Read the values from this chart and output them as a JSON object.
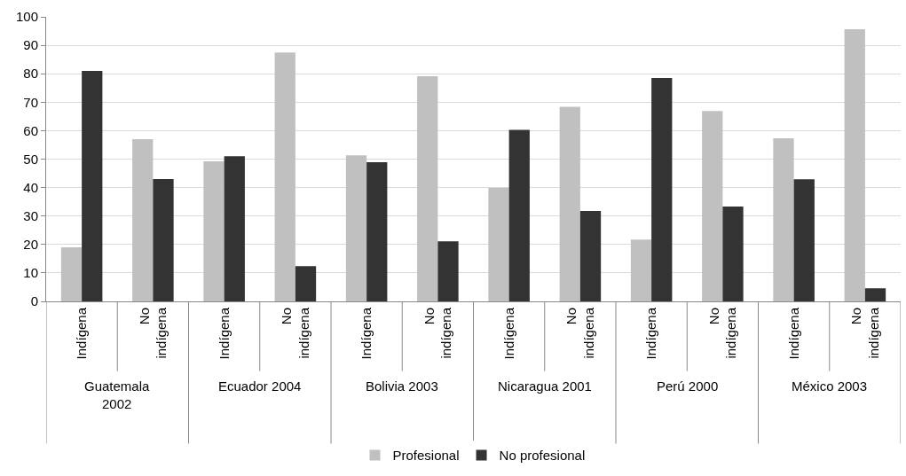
{
  "chart_data": {
    "type": "bar",
    "categories": [
      "Indígena",
      "No\nindígena",
      "Indígena",
      "No\nindígena",
      "Indígena",
      "No\nindígena",
      "Indígena",
      "No\nindígena",
      "Indígena",
      "No\nindígena",
      "Indígena",
      "No\nindígena"
    ],
    "series": [
      {
        "name": "Profesional",
        "color": "#c0c0c0",
        "values": [
          19.0,
          57.0,
          49.2,
          87.5,
          51.3,
          79.1,
          39.9,
          68.4,
          21.7,
          66.9,
          57.3,
          95.6
        ]
      },
      {
        "name": "No profesional",
        "color": "#333333",
        "values": [
          81.0,
          43.0,
          51.0,
          12.4,
          48.9,
          21.1,
          60.3,
          31.8,
          78.5,
          33.3,
          42.9,
          4.6
        ]
      }
    ],
    "annotations": [
      "Guatemala\n2002",
      "Ecuador 2004",
      "Bolivia 2003",
      "Nicaragua 2001",
      "Perú 2000",
      "México 2003"
    ],
    "ylim": [
      0,
      100
    ],
    "yticks": [
      0,
      10,
      20,
      30,
      40,
      50,
      60,
      70,
      80,
      90,
      100
    ],
    "grid": "y",
    "legend": "bottom"
  }
}
